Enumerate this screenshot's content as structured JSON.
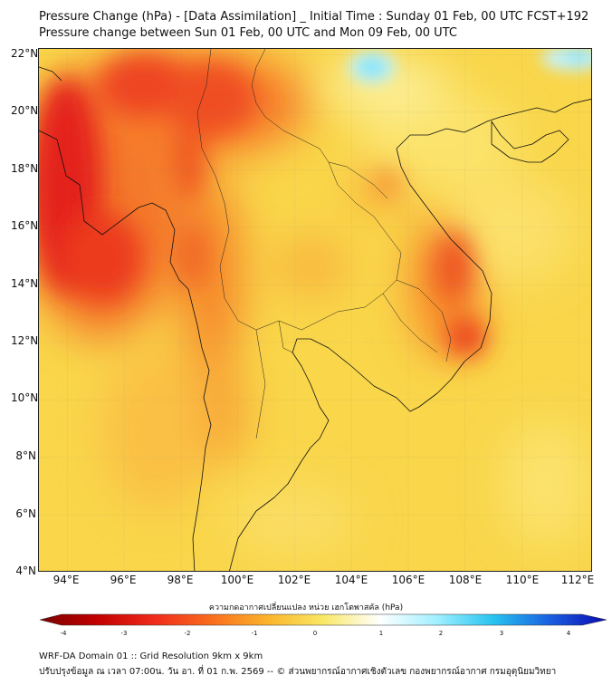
{
  "title_line1": "Pressure Change (hPa) - [Data Assimilation] _ Initial Time : Sunday 01 Feb, 00 UTC FCST+192",
  "title_line2": "Pressure change between Sun 01 Feb, 00 UTC and Mon 09 Feb, 00 UTC",
  "map": {
    "lon_range": [
      93,
      112.5
    ],
    "lat_range": [
      4,
      22.2
    ],
    "x_ticks": [
      "94°E",
      "96°E",
      "98°E",
      "100°E",
      "102°E",
      "104°E",
      "106°E",
      "108°E",
      "110°E",
      "112°E"
    ],
    "y_ticks": [
      "22°N",
      "20°N",
      "18°N",
      "16°N",
      "14°N",
      "12°N",
      "10°N",
      "8°N",
      "6°N",
      "4°N"
    ],
    "background_color": "#f9d64a",
    "dominant_features": [
      {
        "name": "strong-fall-west",
        "lon": 94,
        "lat": 17,
        "value": -3.4
      },
      {
        "name": "fall-north-myanmar",
        "lon": 97,
        "lat": 21,
        "value": -3.0
      },
      {
        "name": "fall-central-vietnam",
        "lon": 107.8,
        "lat": 14.5,
        "value": -3.0
      },
      {
        "name": "fall-south-vietnam",
        "lon": 108,
        "lat": 12.2,
        "value": -3.2
      },
      {
        "name": "rise-north-laos",
        "lon": 105,
        "lat": 21.8,
        "value": 0.6
      },
      {
        "name": "rise-south-china-coast",
        "lon": 112,
        "lat": 22,
        "value": 0.4
      }
    ]
  },
  "colorbar": {
    "label": "ความกดอากาศเปลี่ยนแปลง หน่วย เฮกโตพาสคัล (hPa)",
    "ticks": [
      "-4",
      "-3",
      "-2",
      "-1",
      "0",
      "1",
      "2",
      "3",
      "4"
    ],
    "range": [
      -4,
      4
    ],
    "colors": [
      "#7a0000",
      "#c10000",
      "#ef2a1a",
      "#f96b1d",
      "#fbb32a",
      "#f9e866",
      "#ffffff",
      "#a0f0ff",
      "#27c3f0",
      "#1a5fe0",
      "#0a0ab0"
    ]
  },
  "footer_line1": "WRF-DA Domain 01 :: Grid Resolution 9km x 9km",
  "footer_line2": "ปรับปรุงข้อมูล ณ เวลา 07:00น. วัน อา. ที่ 01 ก.พ. 2569 -- © ส่วนพยากรณ์อากาศเชิงตัวเลข กองพยากรณ์อากาศ กรมอุตุนิยมวิทยา"
}
